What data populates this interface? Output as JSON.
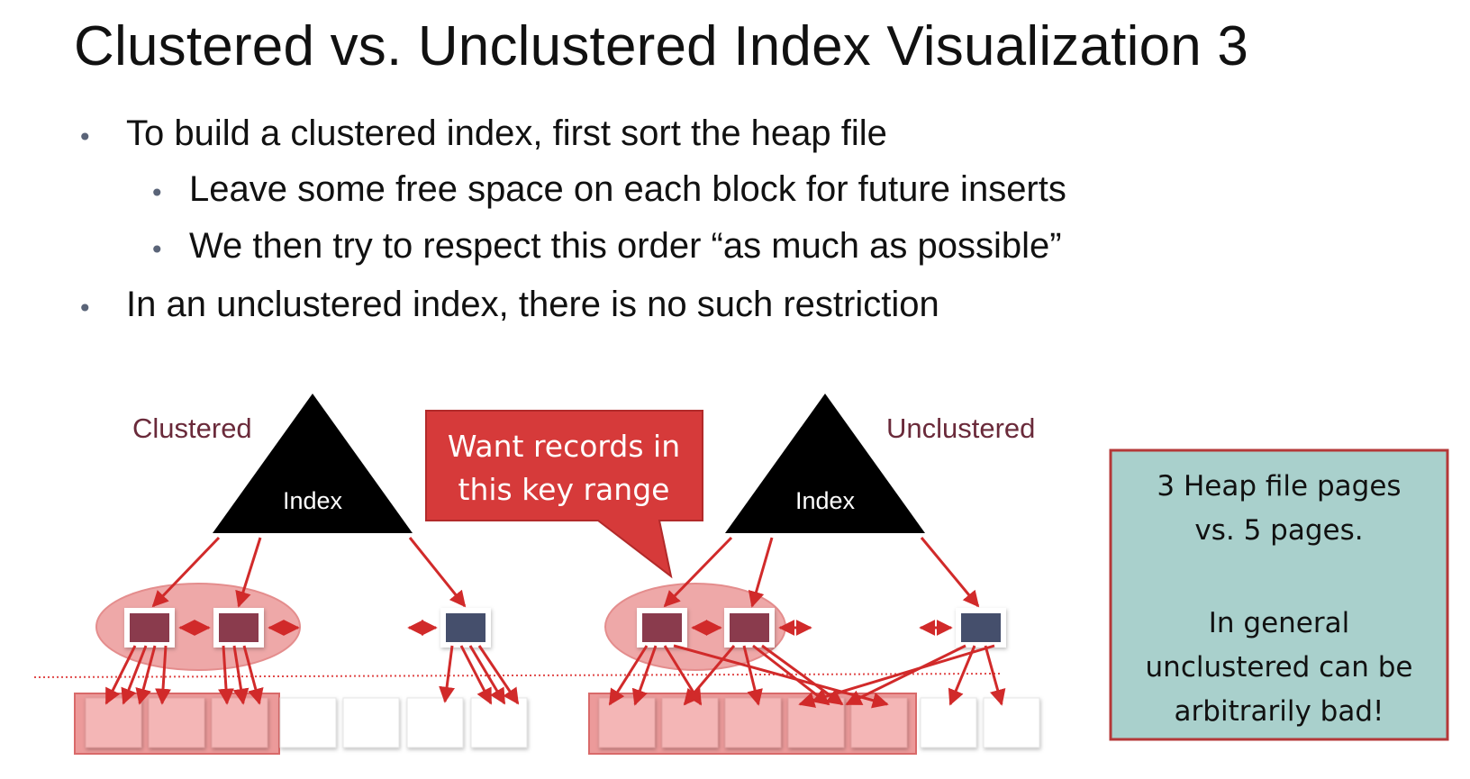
{
  "slide": {
    "title": "Clustered vs. Unclustered Index Visualization 3",
    "bullets": [
      {
        "level": 1,
        "text": "To build a clustered index, first sort the heap file"
      },
      {
        "level": 2,
        "text": "Leave some free space on each block for future inserts"
      },
      {
        "level": 2,
        "text": "We then try to respect this order “as much as possible”"
      },
      {
        "level": 1,
        "text": "In an unclustered index, there is no such restriction"
      }
    ]
  },
  "diagram": {
    "left": {
      "label": "Clustered",
      "index_label": "Index"
    },
    "right": {
      "label": "Unclustered",
      "index_label": "Index"
    },
    "callout": {
      "line1": "Want records in",
      "line2": "this key range"
    },
    "note": {
      "lines": [
        "3 Heap file pages",
        "vs. 5 pages.",
        "",
        "In general",
        "unclustered can be",
        "arbitrarily bad!"
      ]
    },
    "colors": {
      "accent_red": "#d12a2a",
      "callout_fill": "#d63a3a",
      "highlight_fill": "#ec9a9a",
      "leaf_selected": "#8a3b4e",
      "leaf_other": "#44506c",
      "note_fill": "#a9d0cc",
      "note_border": "#b53838",
      "label_color": "#6a2a3a"
    }
  }
}
